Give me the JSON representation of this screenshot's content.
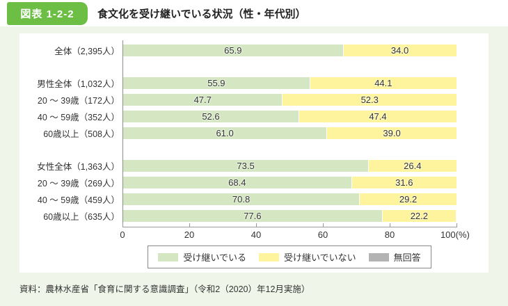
{
  "header": {
    "badge": "図表 1-2-2",
    "title": "食文化を受け継いでいる状況（性・年代別）"
  },
  "chart_data": {
    "type": "bar",
    "orientation": "horizontal",
    "stacked": true,
    "unit": "%",
    "categories": [
      "全体（2,395人）",
      "男性全体（1,032人）",
      "20 ～ 39歳（172人）",
      "40 ～ 59歳（352人）",
      "60歳以上（508人）",
      "女性全体（1,363人）",
      "20 ～ 39歳（269人）",
      "40 ～ 59歳（459人）",
      "60歳以上（635人）"
    ],
    "series": [
      {
        "name": "受け継いでいる",
        "color": "#d5e7c2",
        "values": [
          65.9,
          55.9,
          47.7,
          52.6,
          61.0,
          73.5,
          68.4,
          70.8,
          77.6
        ]
      },
      {
        "name": "受け継いでいない",
        "color": "#fdf49d",
        "values": [
          34.0,
          44.1,
          52.3,
          47.4,
          39.0,
          26.4,
          31.6,
          29.2,
          22.2
        ]
      },
      {
        "name": "無回答",
        "color": "#b3b3b3",
        "values": []
      }
    ],
    "group_gap_after_rows": [
      0,
      4
    ],
    "xlim": [
      0,
      100
    ],
    "x_ticks": [
      "0",
      "20",
      "40",
      "60",
      "80",
      "100(%)"
    ],
    "grid": false,
    "legend_position": "bottom"
  },
  "legend": {
    "items": [
      {
        "label": "受け継いでいる",
        "color": "#d5e7c2"
      },
      {
        "label": "受け継いでいない",
        "color": "#fdf49d"
      },
      {
        "label": "無回答",
        "color": "#b3b3b3"
      }
    ]
  },
  "source": "資料：農林水産省「食育に関する意識調査」（令和2（2020）年12月実施）"
}
